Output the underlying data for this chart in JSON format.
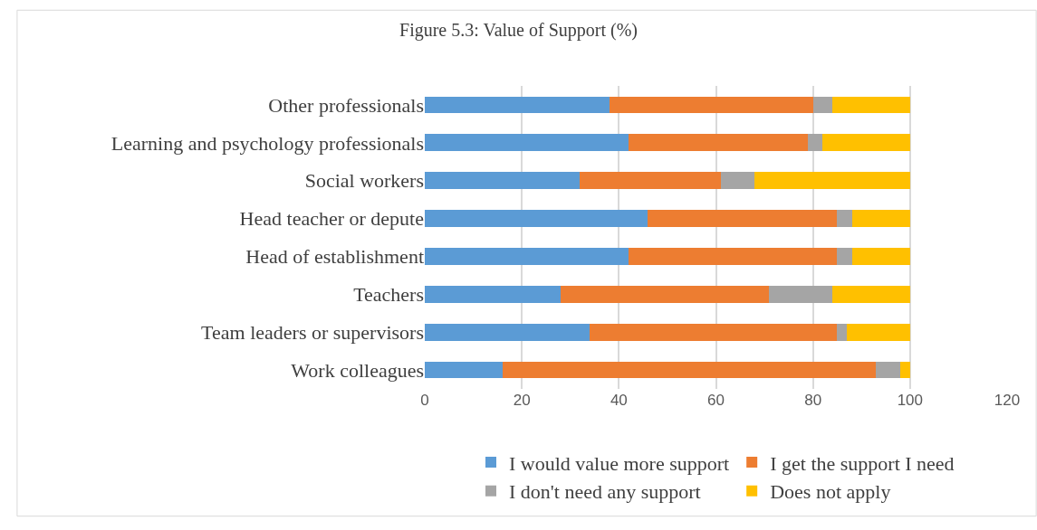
{
  "chart_data": {
    "type": "bar",
    "orientation": "horizontal",
    "stacked": true,
    "title": "Figure 5.3: Value of Support (%)",
    "categories": [
      "Other professionals",
      "Learning and psychology professionals",
      "Social workers",
      "Head teacher or depute",
      "Head of establishment",
      "Teachers",
      "Team leaders or supervisors",
      "Work colleagues"
    ],
    "series": [
      {
        "name": "I would value more support",
        "color": "#5b9bd5",
        "values": [
          38,
          42,
          32,
          46,
          42,
          28,
          34,
          16
        ]
      },
      {
        "name": "I get the support I need",
        "color": "#ed7d31",
        "values": [
          42,
          37,
          29,
          39,
          43,
          43,
          51,
          77
        ]
      },
      {
        "name": "I don't need any support",
        "color": "#a5a5a5",
        "values": [
          4,
          3,
          7,
          3,
          3,
          13,
          2,
          5
        ]
      },
      {
        "name": "Does not apply",
        "color": "#ffc000",
        "values": [
          16,
          18,
          32,
          12,
          12,
          16,
          13,
          2
        ]
      }
    ],
    "xlim": [
      0,
      120
    ],
    "xticks": [
      0,
      20,
      40,
      60,
      80,
      100,
      120
    ],
    "grid": "x",
    "legend": "bottom"
  }
}
